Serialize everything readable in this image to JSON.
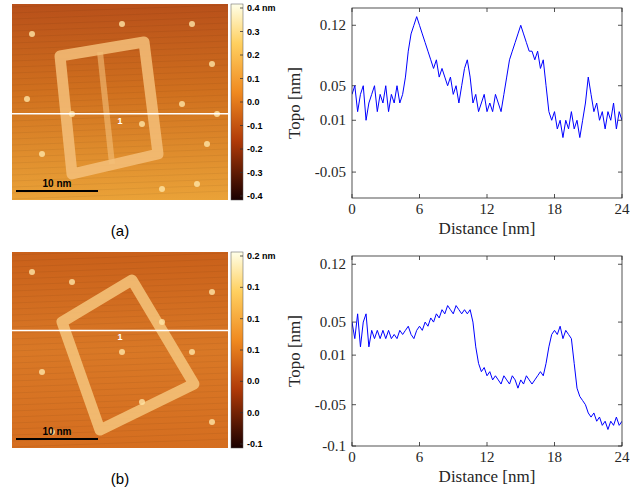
{
  "chart_data": [
    {
      "type": "line",
      "panel_label": "(a)",
      "xlabel": "Distance [nm]",
      "ylabel": "Topo [nm]",
      "xlim": [
        0,
        24
      ],
      "ylim": [
        -0.08,
        0.14
      ],
      "xticks": [
        0,
        6,
        12,
        18,
        24
      ],
      "yticks": [
        -0.05,
        0.01,
        0.05,
        0.12
      ],
      "x": [
        0,
        0.25,
        0.5,
        0.75,
        1,
        1.25,
        1.5,
        1.75,
        2,
        2.25,
        2.5,
        2.75,
        3,
        3.25,
        3.5,
        3.75,
        4,
        4.25,
        4.5,
        4.75,
        5,
        5.25,
        5.5,
        5.75,
        6,
        6.25,
        6.5,
        6.75,
        7,
        7.25,
        7.5,
        7.75,
        8,
        8.25,
        8.5,
        8.75,
        9,
        9.25,
        9.5,
        9.75,
        10,
        10.25,
        10.5,
        10.75,
        11,
        11.25,
        11.5,
        11.75,
        12,
        12.25,
        12.5,
        12.75,
        13,
        13.25,
        13.5,
        13.75,
        14,
        14.25,
        14.5,
        14.75,
        15,
        15.25,
        15.5,
        15.75,
        16,
        16.25,
        16.5,
        16.75,
        17,
        17.25,
        17.5,
        17.75,
        18,
        18.25,
        18.5,
        18.75,
        19,
        19.25,
        19.5,
        19.75,
        20,
        20.25,
        20.5,
        20.75,
        21,
        21.25,
        21.5,
        21.75,
        22,
        22.25,
        22.5,
        22.75,
        23,
        23.25,
        23.5,
        23.75,
        24
      ],
      "series": [
        {
          "color": "#0000ff",
          "values": [
            0.04,
            0.05,
            0.02,
            0.04,
            0.05,
            0.01,
            0.03,
            0.04,
            0.05,
            0.02,
            0.04,
            0.03,
            0.05,
            0.02,
            0.04,
            0.03,
            0.05,
            0.03,
            0.04,
            0.06,
            0.09,
            0.11,
            0.12,
            0.13,
            0.12,
            0.11,
            0.1,
            0.09,
            0.08,
            0.07,
            0.08,
            0.06,
            0.07,
            0.06,
            0.05,
            0.06,
            0.04,
            0.05,
            0.03,
            0.05,
            0.07,
            0.08,
            0.06,
            0.03,
            0.04,
            0.02,
            0.03,
            0.04,
            0.02,
            0.03,
            0.02,
            0.04,
            0.03,
            0.02,
            0.04,
            0.06,
            0.08,
            0.09,
            0.1,
            0.11,
            0.12,
            0.11,
            0.1,
            0.09,
            0.09,
            0.08,
            0.09,
            0.07,
            0.08,
            0.05,
            0.02,
            0.01,
            0.02,
            0.0,
            0.01,
            -0.01,
            0.01,
            0.0,
            0.02,
            0.0,
            0.01,
            -0.01,
            0.01,
            0.03,
            0.06,
            0.04,
            0.02,
            0.03,
            0.01,
            0.02,
            0.0,
            0.02,
            0.01,
            0.03,
            0.0,
            0.02,
            0.01
          ]
        }
      ],
      "image": {
        "scale_bar": "10 nm",
        "line_label": "1",
        "colorbar": {
          "range": [
            -0.4,
            0.4
          ],
          "ticks": [
            {
              "value": 0.4,
              "label": "0.4 nm"
            },
            0.3,
            0.2,
            0.1,
            {
              "value": 0,
              "label": "0.0"
            },
            -0.1,
            -0.2,
            -0.3,
            -0.4
          ]
        }
      }
    },
    {
      "type": "line",
      "panel_label": "(b)",
      "xlabel": "Distance [nm]",
      "ylabel": "Topo [nm]",
      "xlim": [
        0,
        24
      ],
      "ylim": [
        -0.1,
        0.13
      ],
      "xticks": [
        0,
        6,
        12,
        18,
        24
      ],
      "yticks": [
        -0.1,
        -0.05,
        0.01,
        0.05,
        0.12
      ],
      "x": [
        0,
        0.25,
        0.5,
        0.75,
        1,
        1.25,
        1.5,
        1.75,
        2,
        2.25,
        2.5,
        2.75,
        3,
        3.25,
        3.5,
        3.75,
        4,
        4.25,
        4.5,
        4.75,
        5,
        5.25,
        5.5,
        5.75,
        6,
        6.25,
        6.5,
        6.75,
        7,
        7.25,
        7.5,
        7.75,
        8,
        8.25,
        8.5,
        8.75,
        9,
        9.25,
        9.5,
        9.75,
        10,
        10.25,
        10.5,
        10.75,
        11,
        11.25,
        11.5,
        11.75,
        12,
        12.25,
        12.5,
        12.75,
        13,
        13.25,
        13.5,
        13.75,
        14,
        14.25,
        14.5,
        14.75,
        15,
        15.25,
        15.5,
        15.75,
        16,
        16.25,
        16.5,
        16.75,
        17,
        17.25,
        17.5,
        17.75,
        18,
        18.25,
        18.5,
        18.75,
        19,
        19.25,
        19.5,
        19.75,
        20,
        20.25,
        20.5,
        20.75,
        21,
        21.25,
        21.5,
        21.75,
        22,
        22.25,
        22.5,
        22.75,
        23,
        23.25,
        23.5,
        23.75,
        24
      ],
      "series": [
        {
          "color": "#0000ff",
          "values": [
            0.05,
            0.03,
            0.06,
            0.02,
            0.05,
            0.06,
            0.02,
            0.04,
            0.03,
            0.04,
            0.03,
            0.04,
            0.03,
            0.04,
            0.03,
            0.035,
            0.03,
            0.04,
            0.035,
            0.04,
            0.045,
            0.035,
            0.03,
            0.04,
            0.045,
            0.04,
            0.05,
            0.045,
            0.055,
            0.05,
            0.06,
            0.055,
            0.065,
            0.06,
            0.07,
            0.065,
            0.06,
            0.07,
            0.065,
            0.06,
            0.065,
            0.06,
            0.065,
            0.05,
            0.02,
            0.0,
            -0.01,
            -0.005,
            -0.015,
            -0.01,
            -0.02,
            -0.015,
            -0.02,
            -0.025,
            -0.015,
            -0.02,
            -0.025,
            -0.015,
            -0.02,
            -0.03,
            -0.02,
            -0.025,
            -0.015,
            -0.02,
            -0.025,
            -0.02,
            -0.015,
            -0.01,
            -0.015,
            0.0,
            0.02,
            0.035,
            0.04,
            0.035,
            0.045,
            0.03,
            0.04,
            0.035,
            0.03,
            0.0,
            -0.03,
            -0.04,
            -0.045,
            -0.05,
            -0.06,
            -0.065,
            -0.06,
            -0.07,
            -0.065,
            -0.075,
            -0.07,
            -0.08,
            -0.07,
            -0.075,
            -0.065,
            -0.075,
            -0.07
          ]
        }
      ],
      "image": {
        "scale_bar": "10 nm",
        "line_label": "1",
        "colorbar": {
          "range": [
            -0.1,
            0.2
          ],
          "ticks": [
            {
              "value": 0.2,
              "label": "0.2 nm"
            },
            {
              "value": 0.15,
              "label": "0.1"
            },
            0.1,
            {
              "value": 0.05,
              "label": "0.1"
            },
            {
              "value": 0,
              "label": "0.0"
            },
            {
              "value": -0.05,
              "label": "0.0"
            },
            -0.1
          ]
        }
      }
    }
  ]
}
